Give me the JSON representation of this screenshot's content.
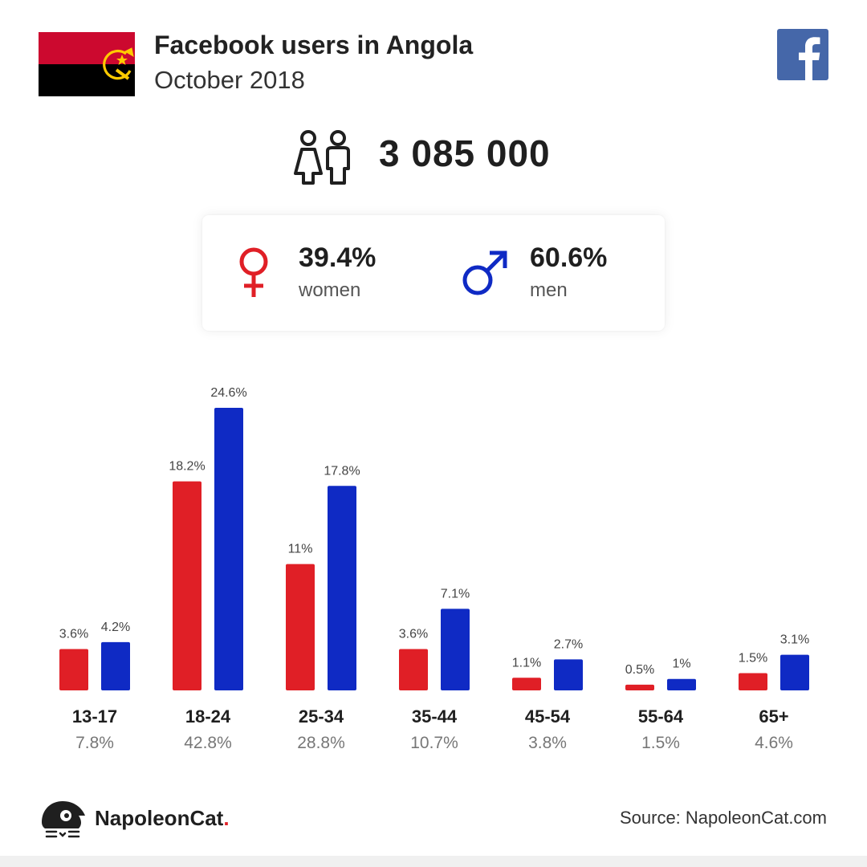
{
  "header": {
    "title": "Facebook users in Angola",
    "subtitle": "October 2018"
  },
  "total_users": "3 085 000",
  "gender": {
    "women_pct": "39.4%",
    "women_label": "women",
    "men_pct": "60.6%",
    "men_label": "men"
  },
  "colors": {
    "women": "#e01f26",
    "men": "#0f2ac4",
    "facebook": "#4567a9",
    "flag_red": "#cc092f",
    "flag_black": "#000000",
    "flag_emblem": "#ffcb00"
  },
  "chart_data": {
    "type": "bar",
    "categories": [
      "13-17",
      "18-24",
      "25-34",
      "35-44",
      "45-54",
      "55-64",
      "65+"
    ],
    "category_shares": [
      "7.8%",
      "42.8%",
      "28.8%",
      "10.7%",
      "3.8%",
      "1.5%",
      "4.6%"
    ],
    "series": [
      {
        "values": [
          3.6,
          18.2,
          11,
          3.6,
          1.1,
          0.5,
          1.5
        ],
        "labels": [
          "3.6%",
          "18.2%",
          "11%",
          "3.6%",
          "1.1%",
          "0.5%",
          "1.5%"
        ],
        "color": "#e01f26"
      },
      {
        "values": [
          4.2,
          24.6,
          17.8,
          7.1,
          2.7,
          1,
          3.1
        ],
        "labels": [
          "4.2%",
          "24.6%",
          "17.8%",
          "7.1%",
          "2.7%",
          "1%",
          "3.1%"
        ],
        "color": "#0f2ac4"
      }
    ],
    "ylim": [
      0,
      24.6
    ],
    "grid": false
  },
  "footer": {
    "brand": "NapoleonCat",
    "brand_dot": ".",
    "source": "Source: NapoleonCat.com"
  }
}
